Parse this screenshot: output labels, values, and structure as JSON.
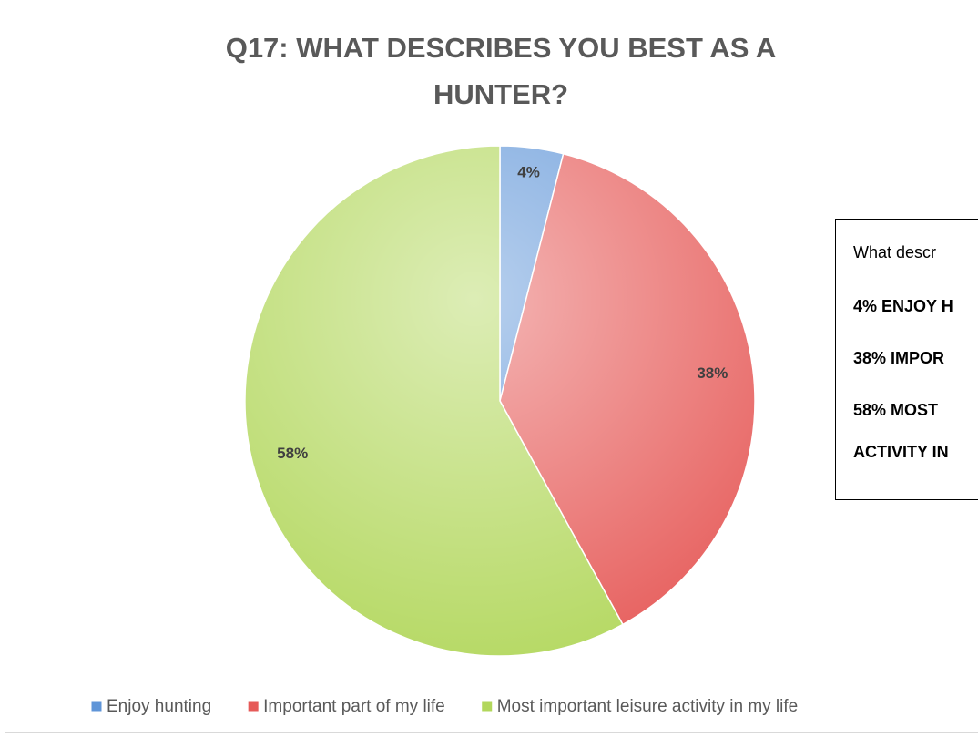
{
  "chart_data": {
    "type": "pie",
    "title": [
      "Q17: WHAT DESCRIBES YOU BEST AS A",
      "HUNTER?"
    ],
    "categories": [
      "Enjoy hunting",
      "Important part of my life",
      "Most important leisure activity in my life"
    ],
    "values": [
      4,
      38,
      58
    ],
    "value_labels": [
      "4%",
      "38%",
      "58%"
    ],
    "colors": [
      "#5f95d8",
      "#e65a58",
      "#b2d75c"
    ],
    "legend": "bottom",
    "annotation_box": [
      "What descr",
      "4% ENJOY H",
      "38% IMPOR",
      "58% MOST",
      "ACTIVITY IN"
    ]
  }
}
